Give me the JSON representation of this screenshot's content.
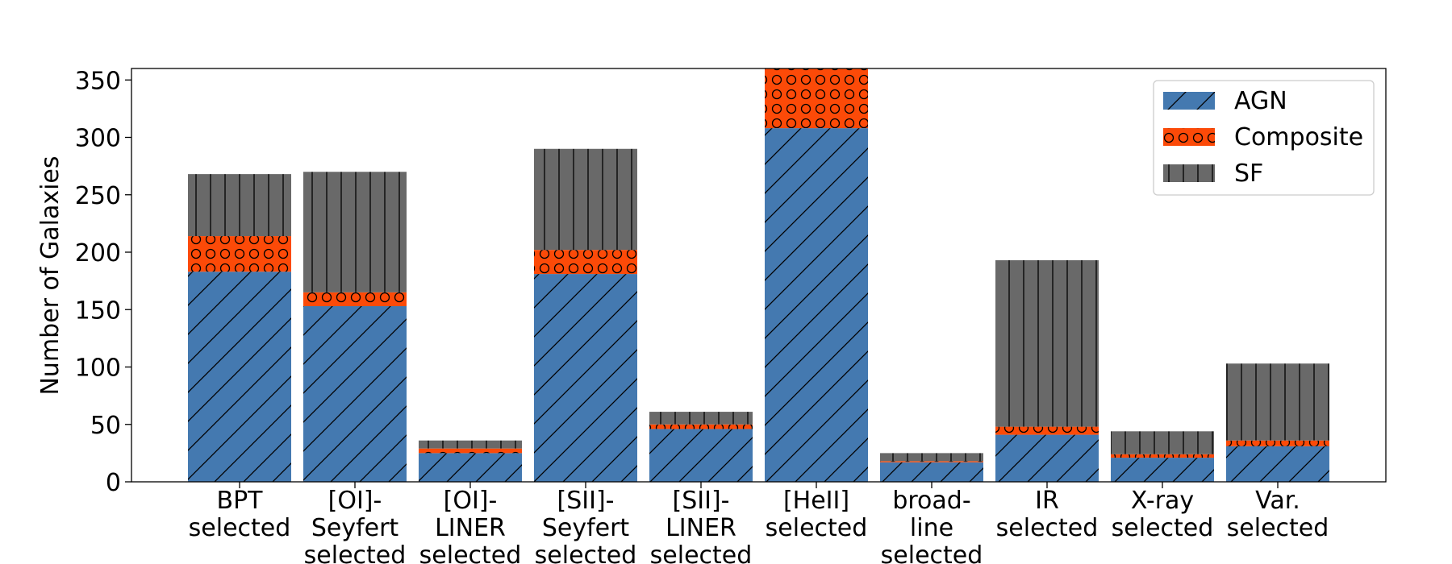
{
  "chart_data": {
    "type": "bar",
    "stacked": true,
    "title": "",
    "xlabel": "",
    "ylabel": "Number of Galaxies",
    "ylim": [
      0,
      360
    ],
    "yticks": [
      0,
      50,
      100,
      150,
      200,
      250,
      300,
      350
    ],
    "categories": [
      [
        "BPT",
        "selected"
      ],
      [
        "[OI]-",
        "Seyfert",
        "selected"
      ],
      [
        "[OI]-",
        "LINER",
        "selected"
      ],
      [
        "[SII]-",
        "Seyfert",
        "selected"
      ],
      [
        "[SII]-",
        "LINER",
        "selected"
      ],
      [
        "[HeII]",
        "selected"
      ],
      [
        "broad-",
        "line",
        "selected"
      ],
      [
        "IR",
        "selected"
      ],
      [
        "X-ray",
        "selected"
      ],
      [
        "Var.",
        "selected"
      ]
    ],
    "series": [
      {
        "name": "AGN",
        "color": "#4479b0",
        "hatch": "diagonal",
        "values": [
          183,
          153,
          25,
          181,
          46,
          308,
          17,
          41,
          21,
          31
        ]
      },
      {
        "name": "Composite",
        "color": "#fc4a08",
        "hatch": "circles",
        "values": [
          31,
          12,
          4,
          21,
          4,
          53,
          1,
          7,
          3,
          5
        ]
      },
      {
        "name": "SF",
        "color": "#696969",
        "hatch": "vertical",
        "values": [
          54,
          105,
          7,
          88,
          11,
          0,
          7,
          145,
          20,
          67
        ]
      }
    ],
    "legend": {
      "position": "top-right",
      "entries": [
        "AGN",
        "Composite",
        "SF"
      ]
    },
    "grid": false
  }
}
